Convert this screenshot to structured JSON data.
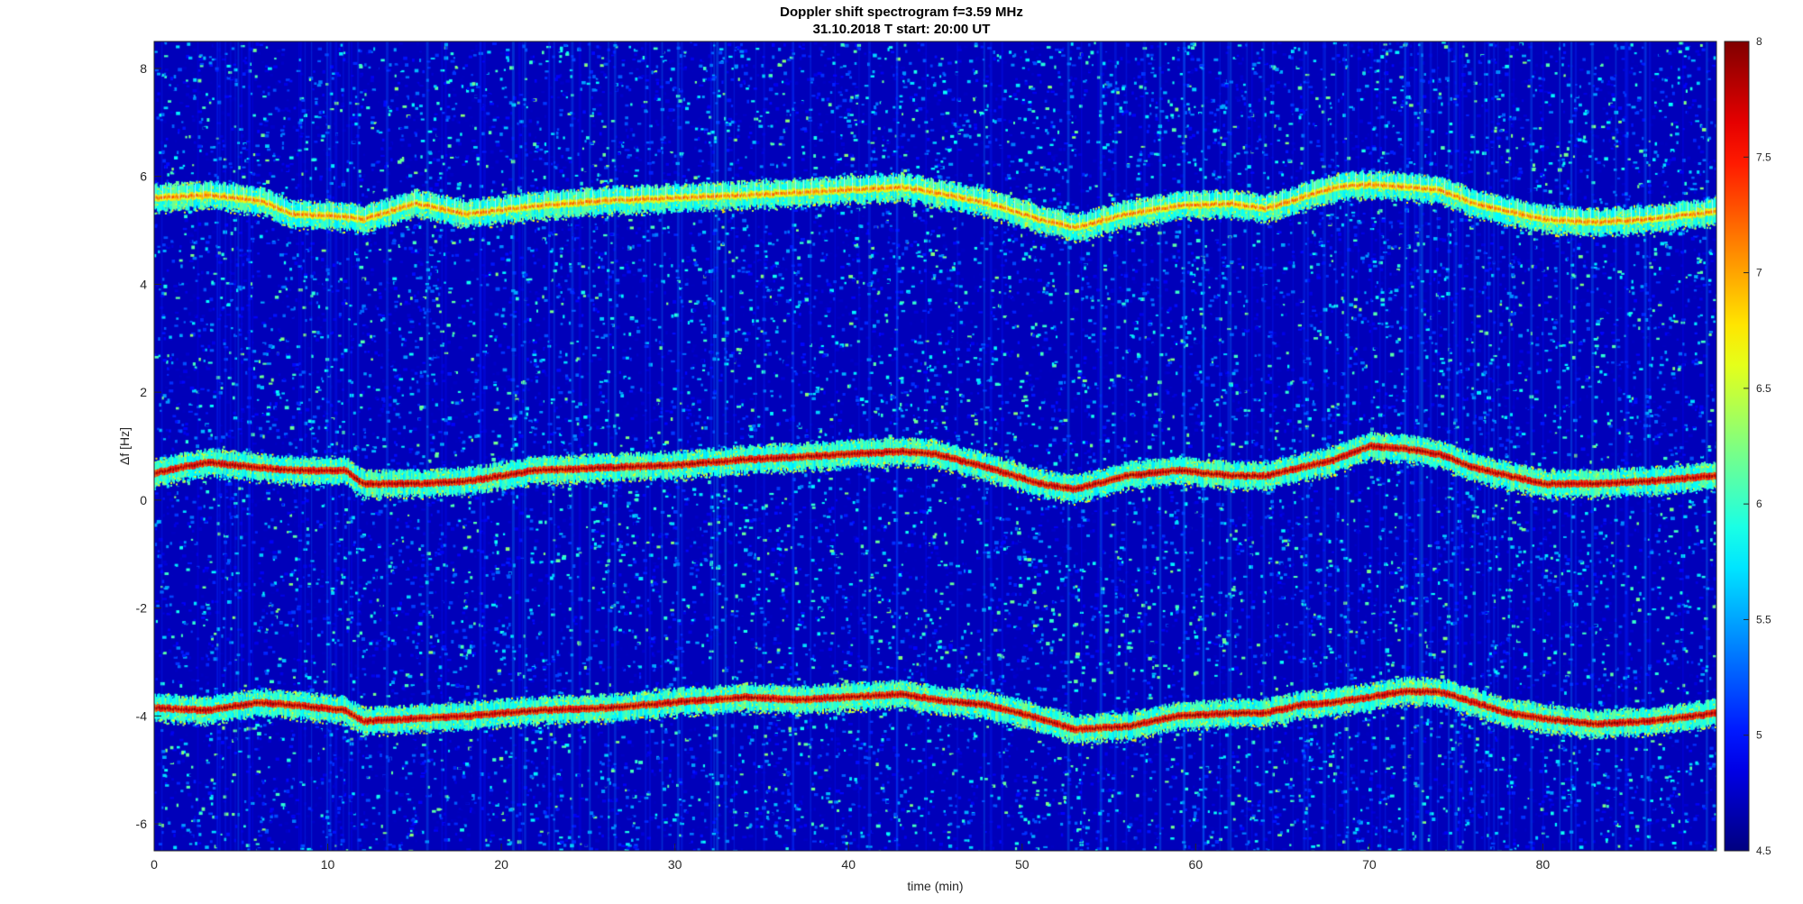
{
  "chart_data": {
    "type": "heatmap",
    "title": "Doppler shift spectrogram f=3.59 MHz",
    "subtitle": "31.10.2018   T start: 20:00 UT",
    "xlabel": "time (min)",
    "ylabel": "Δf [Hz]",
    "xlim": [
      0,
      90
    ],
    "ylim": [
      -6.5,
      8.5
    ],
    "xticks": [
      0,
      10,
      20,
      30,
      40,
      50,
      60,
      70,
      80
    ],
    "yticks": [
      -6,
      -4,
      -2,
      0,
      2,
      4,
      6,
      8
    ],
    "colormap": "jet",
    "colorbar": {
      "limits": [
        4.5,
        8
      ],
      "ticks": [
        "4.5",
        "5",
        "5.5",
        "6",
        "6.5",
        "7",
        "7.5",
        "8"
      ]
    },
    "background_level": 4.7,
    "traces": [
      {
        "x": [
          0,
          3,
          6,
          8,
          11,
          12,
          15,
          18,
          22,
          26,
          30,
          34,
          37,
          40,
          43,
          45,
          48,
          51,
          53,
          56,
          59,
          62,
          64,
          66,
          68,
          70,
          72,
          74,
          76,
          78,
          80,
          83,
          86,
          90
        ],
        "y": [
          5.6,
          5.65,
          5.55,
          5.3,
          5.25,
          5.2,
          5.5,
          5.3,
          5.45,
          5.55,
          5.6,
          5.65,
          5.7,
          5.75,
          5.8,
          5.7,
          5.5,
          5.2,
          5.05,
          5.3,
          5.45,
          5.5,
          5.4,
          5.6,
          5.8,
          5.85,
          5.8,
          5.75,
          5.5,
          5.35,
          5.2,
          5.15,
          5.2,
          5.35
        ],
        "peak_level": 7.3
      },
      {
        "x": [
          0,
          3,
          6,
          8,
          11,
          12,
          15,
          18,
          22,
          26,
          30,
          34,
          37,
          40,
          43,
          45,
          48,
          51,
          53,
          56,
          59,
          62,
          64,
          66,
          68,
          70,
          72,
          74,
          76,
          78,
          80,
          83,
          86,
          90
        ],
        "y": [
          0.5,
          0.7,
          0.6,
          0.55,
          0.55,
          0.3,
          0.3,
          0.35,
          0.55,
          0.6,
          0.65,
          0.75,
          0.8,
          0.85,
          0.9,
          0.85,
          0.6,
          0.3,
          0.2,
          0.45,
          0.55,
          0.45,
          0.45,
          0.6,
          0.75,
          1.0,
          0.95,
          0.85,
          0.6,
          0.45,
          0.3,
          0.3,
          0.35,
          0.45
        ],
        "peak_level": 8
      },
      {
        "x": [
          0,
          3,
          6,
          8,
          11,
          12,
          15,
          18,
          22,
          26,
          30,
          34,
          37,
          40,
          43,
          45,
          48,
          51,
          53,
          56,
          59,
          62,
          64,
          66,
          68,
          70,
          72,
          74,
          76,
          78,
          80,
          83,
          86,
          90
        ],
        "y": [
          -3.85,
          -3.9,
          -3.75,
          -3.8,
          -3.9,
          -4.1,
          -4.05,
          -4.0,
          -3.9,
          -3.85,
          -3.75,
          -3.65,
          -3.7,
          -3.65,
          -3.6,
          -3.7,
          -3.8,
          -4.05,
          -4.25,
          -4.2,
          -4.0,
          -3.95,
          -3.95,
          -3.8,
          -3.75,
          -3.65,
          -3.55,
          -3.55,
          -3.75,
          -3.95,
          -4.05,
          -4.15,
          -4.1,
          -3.95
        ],
        "peak_level": 8
      }
    ]
  }
}
